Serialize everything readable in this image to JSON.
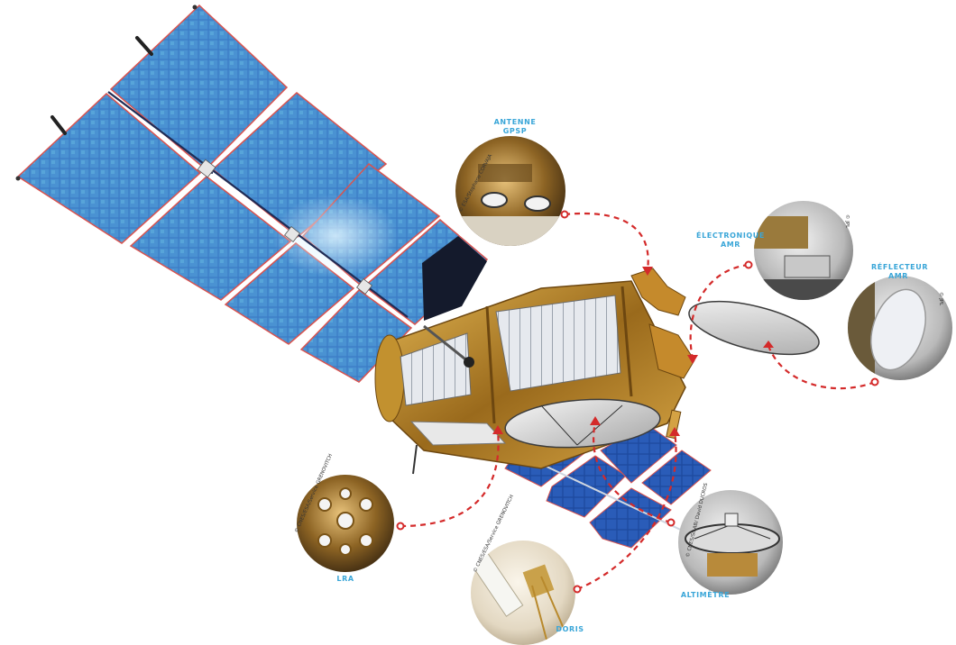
{
  "labels": {
    "gpsp": "ANTENNE\nGPSP",
    "electronics": "ÉLECTRONIQUE\nAMR",
    "reflector": "RÉFLECTEUR\nAMR",
    "lra": "LRA",
    "doris": "DORIS",
    "altimeter": "ALTIMÈTRE"
  },
  "credits": {
    "gpsp": "© ESA/Stephane CORVAJA",
    "electronics": "© JPL",
    "reflector": "© JPL",
    "lra": "© CNES/ESA/Service GRENOVITCH",
    "doris": "© CNES/ESA/Service GRENOVITCH",
    "altimeter": "© CNES/SILAB/ David DUCROS"
  },
  "colors": {
    "label": "#3aa6d8",
    "leader": "#d42a2a",
    "solar_cell": "#3a78c4",
    "solar_cell_light": "#5fb0dc",
    "gold_foil": "#b8862a",
    "frame_red": "#d9534f"
  }
}
